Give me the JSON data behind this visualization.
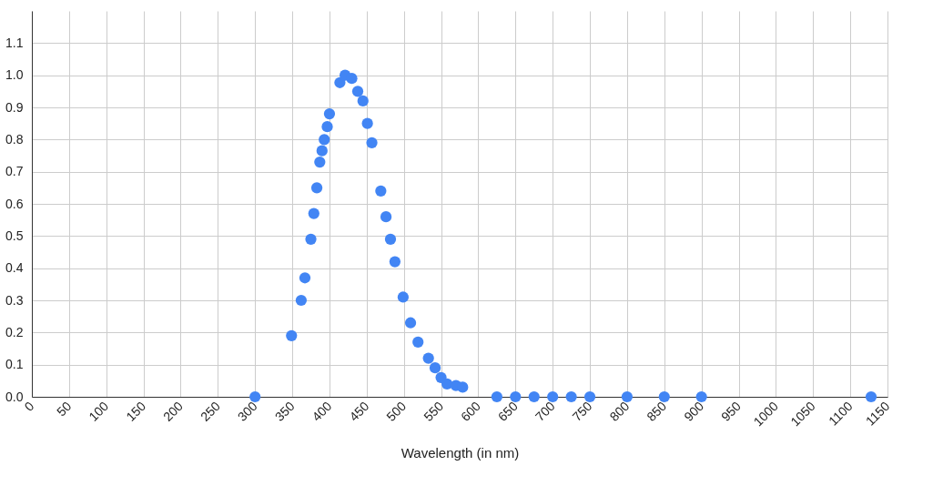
{
  "chart_data": {
    "type": "scatter",
    "xlabel": "Wavelength (in nm)",
    "x": [
      300,
      349,
      362,
      367,
      375,
      379,
      383,
      387,
      390,
      393,
      397,
      400,
      414,
      421,
      430,
      438,
      445,
      451,
      457,
      469,
      476,
      482,
      488,
      499,
      509,
      519,
      533,
      542,
      550,
      558,
      570,
      579,
      625,
      650,
      675,
      700,
      725,
      750,
      800,
      850,
      900,
      1128
    ],
    "series": [
      {
        "color": "#4285f4",
        "values": [
          0,
          0.19,
          0.3,
          0.37,
          0.49,
          0.57,
          0.65,
          0.73,
          0.765,
          0.8,
          0.84,
          0.88,
          0.977,
          1.0,
          0.99,
          0.95,
          0.92,
          0.85,
          0.79,
          0.64,
          0.56,
          0.49,
          0.42,
          0.31,
          0.23,
          0.17,
          0.12,
          0.09,
          0.06,
          0.04,
          0.035,
          0.03,
          0,
          0,
          0,
          0,
          0,
          0,
          0,
          0,
          0,
          0
        ]
      }
    ],
    "xlim": [
      0,
      1150
    ],
    "xticks": [
      0,
      50,
      100,
      150,
      200,
      250,
      300,
      350,
      400,
      450,
      500,
      550,
      600,
      650,
      700,
      750,
      800,
      850,
      900,
      950,
      1000,
      1050,
      1100,
      1150
    ],
    "ylim": [
      0,
      1.2
    ],
    "yticks": [
      {
        "value": 0,
        "label": "0.0"
      },
      {
        "value": 0.1,
        "label": "0.1"
      },
      {
        "value": 0.2,
        "label": "0.2"
      },
      {
        "value": 0.3,
        "label": "0.3"
      },
      {
        "value": 0.4,
        "label": "0.4"
      },
      {
        "value": 0.5,
        "label": "0.5"
      },
      {
        "value": 0.6,
        "label": "0.6"
      },
      {
        "value": 0.7,
        "label": "0.7"
      },
      {
        "value": 0.8,
        "label": "0.8"
      },
      {
        "value": 0.9,
        "label": "0.9"
      },
      {
        "value": 1.0,
        "label": "1.0"
      },
      {
        "value": 1.1,
        "label": "1.1"
      }
    ],
    "grid": true,
    "marker": "circle"
  }
}
